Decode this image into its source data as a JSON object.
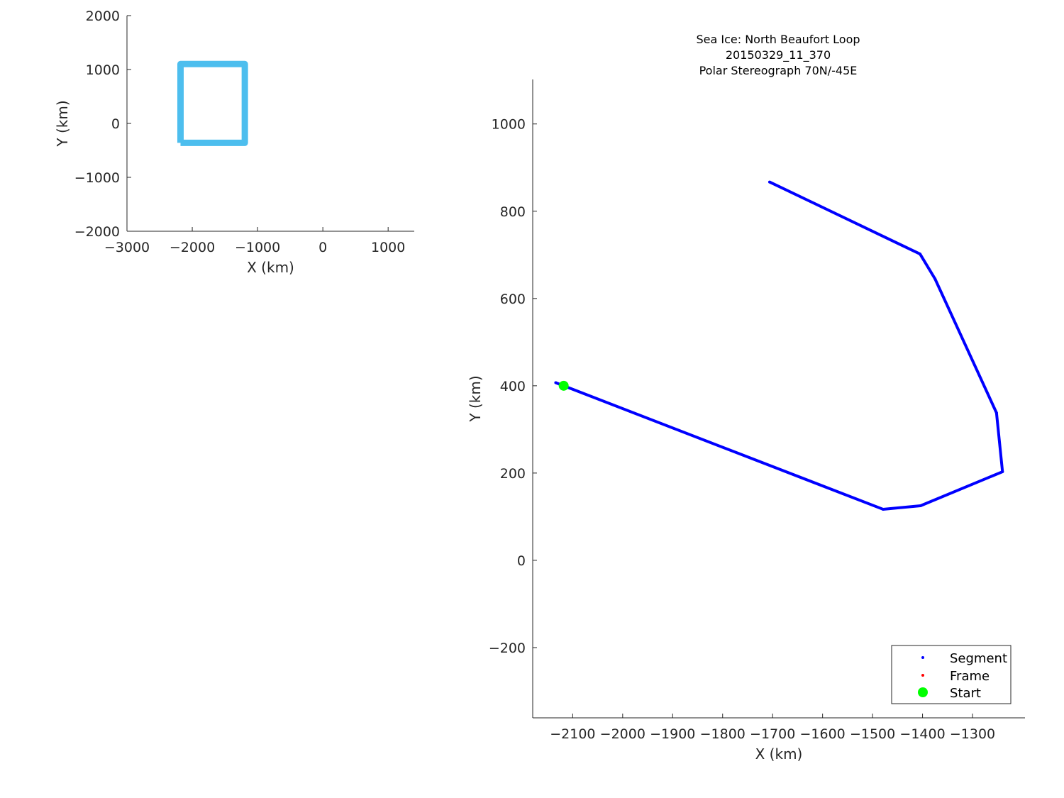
{
  "chart_data": [
    {
      "type": "line",
      "xlabel": "X (km)",
      "ylabel": "Y (km)",
      "xlim": [
        -3000,
        1400
      ],
      "ylim": [
        -2000,
        2000
      ],
      "xticks": [
        -3000,
        -2000,
        -1000,
        0,
        1000
      ],
      "yticks": [
        -2000,
        -1000,
        0,
        1000,
        2000
      ],
      "xtick_labels": [
        "−3000",
        "−2000",
        "−1000",
        "0",
        "1000"
      ],
      "ytick_labels": [
        "−2000",
        "−1000",
        "0",
        "1000",
        "2000"
      ],
      "grid": false,
      "series": [
        {
          "color": "#4DBEEE",
          "x": [
            -2180,
            -1195,
            -1195,
            -2180,
            -2180
          ],
          "y": [
            -361,
            -361,
            1102,
            1102,
            -361
          ]
        }
      ]
    },
    {
      "type": "line",
      "title": [
        "Sea Ice: North Beaufort Loop",
        "20150329_11_370",
        "Polar Stereograph 70N/-45E"
      ],
      "xlabel": "X (km)",
      "ylabel": "Y (km)",
      "xlim": [
        -2180,
        -1195
      ],
      "ylim": [
        -361,
        1102
      ],
      "xticks": [
        -2100,
        -2000,
        -1900,
        -1800,
        -1700,
        -1600,
        -1500,
        -1400,
        -1300
      ],
      "yticks": [
        -200,
        0,
        200,
        400,
        600,
        800,
        1000
      ],
      "xtick_labels": [
        "−2100",
        "−2000",
        "−1900",
        "−1800",
        "−1700",
        "−1600",
        "−1500",
        "−1400",
        "−1300"
      ],
      "ytick_labels": [
        "−200",
        "0",
        "200",
        "400",
        "600",
        "800",
        "1000"
      ],
      "grid": false,
      "legend_position": "bottom-right",
      "series": [
        {
          "name": "Segment",
          "color": "#0000FF",
          "x": [
            -2134,
            -1479,
            -1404,
            -1240,
            -1252,
            -1375,
            -1405,
            -1706
          ],
          "y": [
            407,
            117,
            125,
            203,
            338,
            645,
            702,
            867
          ]
        },
        {
          "name": "Frame",
          "color": "#FF0000",
          "x": [],
          "y": []
        },
        {
          "name": "Start",
          "color": "#00FF00",
          "x": [
            -2118
          ],
          "y": [
            400
          ]
        }
      ]
    }
  ]
}
